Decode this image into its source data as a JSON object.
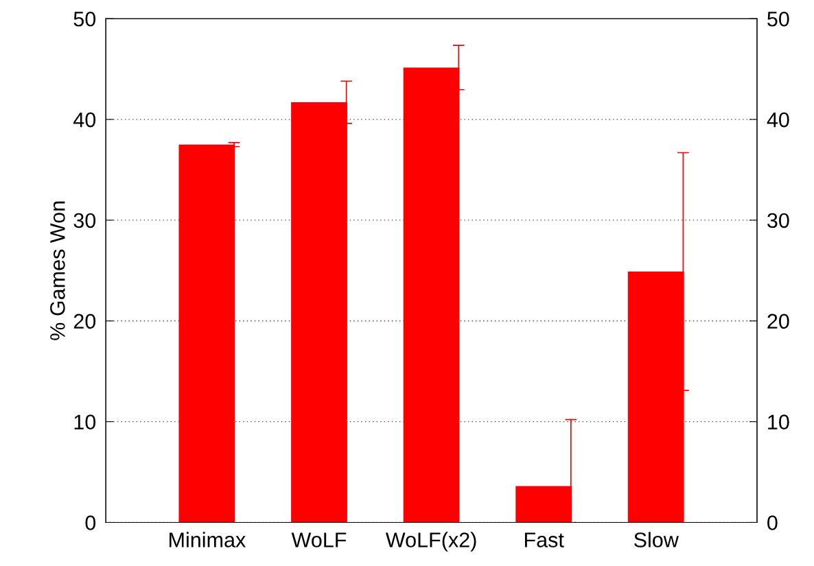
{
  "chart_data": {
    "type": "bar",
    "ylabel": "% Games Won",
    "categories": [
      "Minimax",
      "WoLF",
      "WoLF(x2)",
      "Fast",
      "Slow"
    ],
    "values": [
      37.5,
      41.7,
      45.15,
      3.6,
      24.9
    ],
    "errors": [
      0.2,
      2.1,
      2.2,
      [
        0,
        10.2
      ],
      11.8
    ],
    "color": "#ff0000",
    "ylim": [
      0,
      50
    ],
    "yticks": [
      0,
      10,
      20,
      30,
      40,
      50
    ],
    "y2lim": [
      0,
      50
    ],
    "y2ticks": [
      0,
      10,
      20,
      30,
      40,
      50
    ],
    "grid": "y",
    "legend": false
  }
}
